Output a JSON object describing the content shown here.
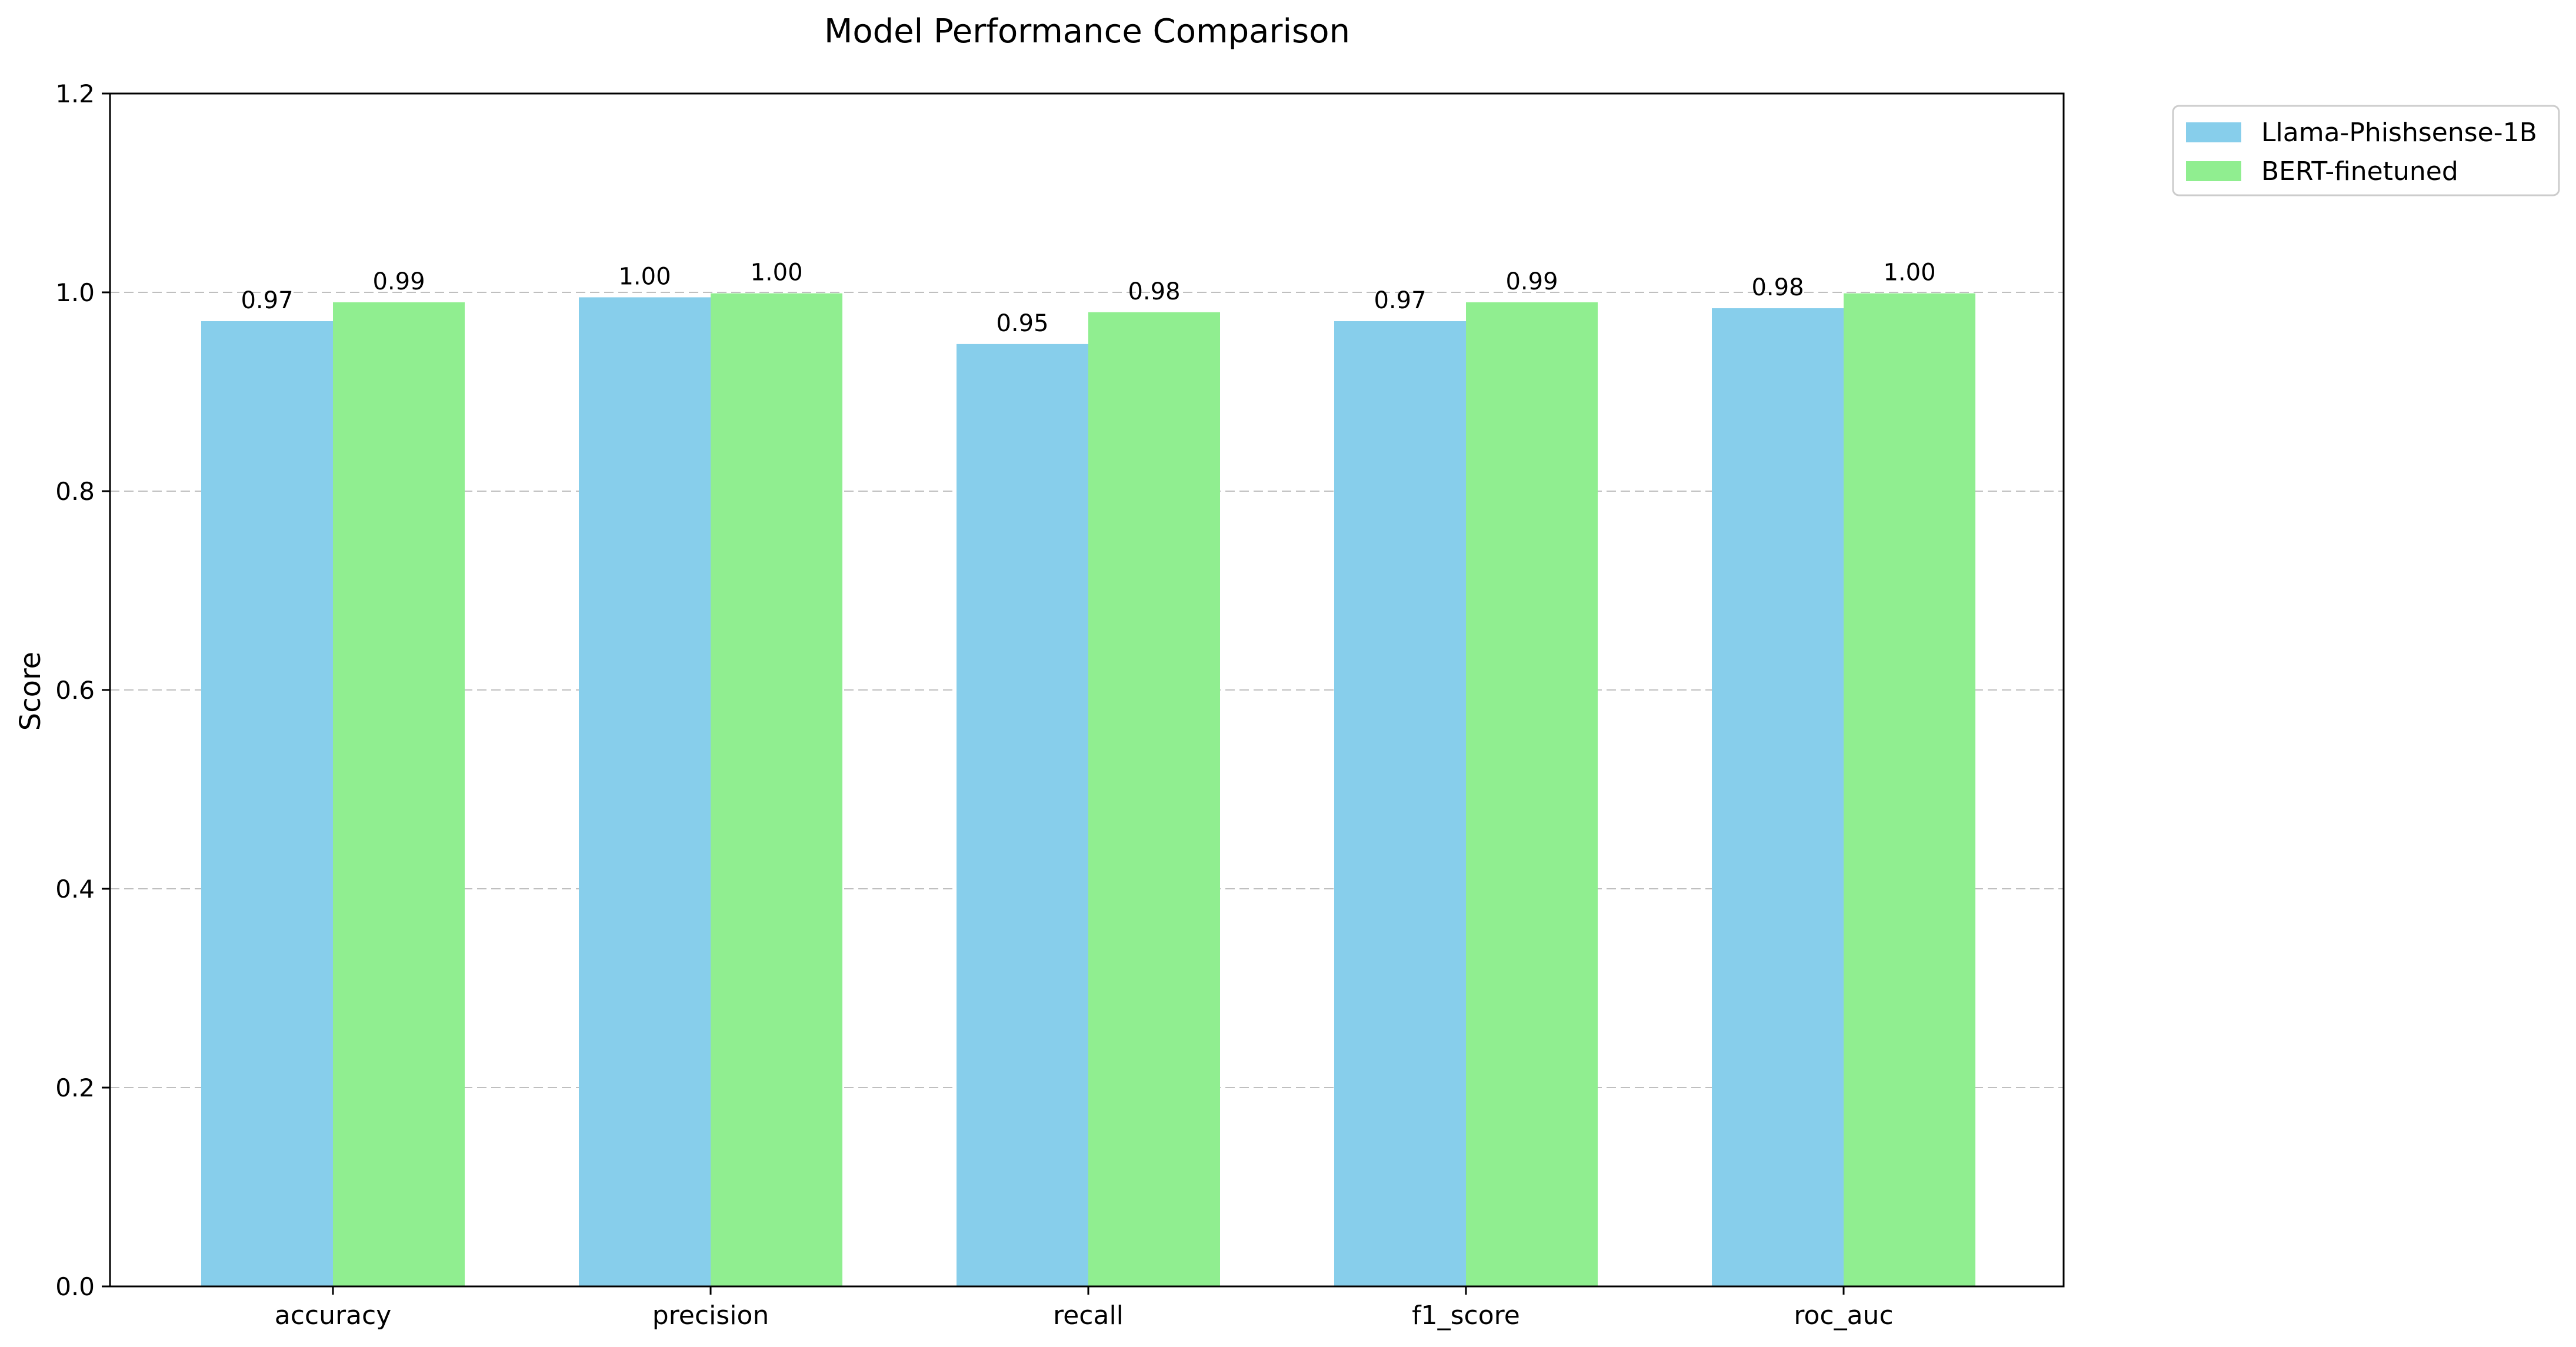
{
  "chart_data": {
    "type": "bar",
    "title": "Model Performance Comparison",
    "xlabel": "",
    "ylabel": "Score",
    "ylim": [
      0,
      1.2
    ],
    "yticks": [
      0.0,
      0.2,
      0.4,
      0.6,
      0.8,
      1.0,
      1.2
    ],
    "ytick_labels": [
      "0.0",
      "0.2",
      "0.4",
      "0.6",
      "0.8",
      "1.0",
      "1.2"
    ],
    "grid": "y-dashed",
    "legend_position": "outside-top-right",
    "categories": [
      "accuracy",
      "precision",
      "recall",
      "f1_score",
      "roc_auc"
    ],
    "series": [
      {
        "name": "Llama-Phishsense-1B",
        "color": "#87CEEB",
        "values": [
          0.971,
          0.995,
          0.948,
          0.971,
          0.984
        ],
        "labels": [
          "0.97",
          "1.00",
          "0.95",
          "0.97",
          "0.98"
        ]
      },
      {
        "name": "BERT-finetuned",
        "color": "#90EE90",
        "values": [
          0.99,
          0.999,
          0.98,
          0.99,
          0.999
        ],
        "labels": [
          "0.99",
          "1.00",
          "0.98",
          "0.99",
          "1.00"
        ]
      }
    ]
  }
}
